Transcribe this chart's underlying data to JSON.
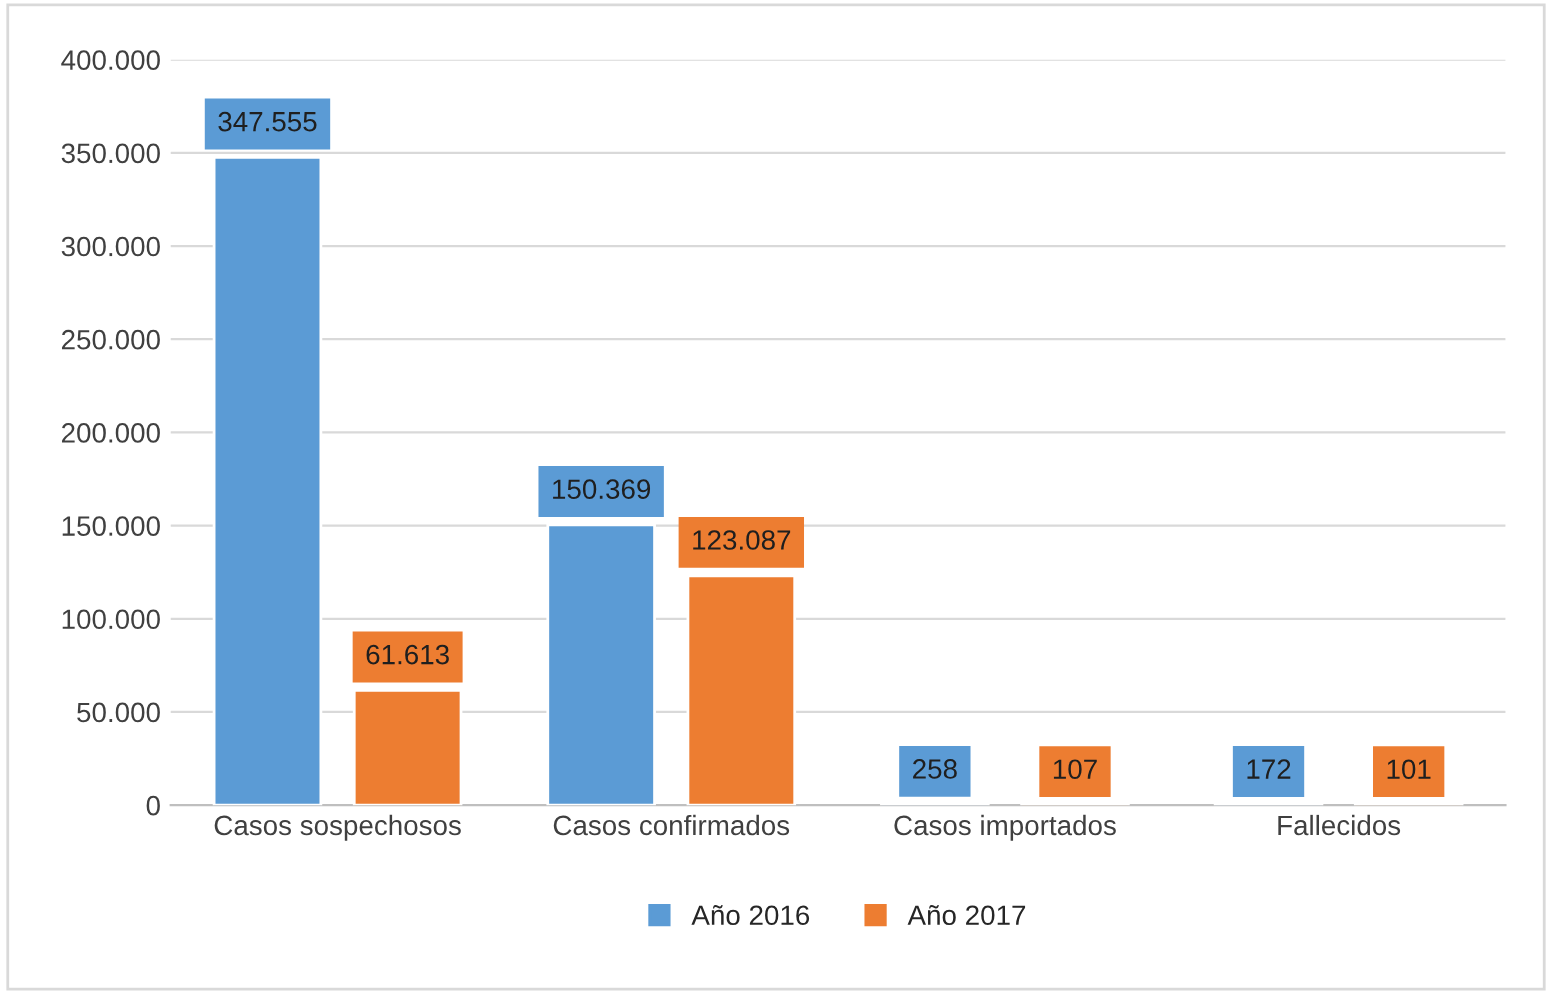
{
  "chart_data": {
    "type": "bar",
    "categories": [
      "Casos sospechosos",
      "Casos confirmados",
      "Casos importados",
      "Fallecidos"
    ],
    "series": [
      {
        "name": "Año 2016",
        "color": "#5b9bd5",
        "values": [
          347555,
          150369,
          258,
          172
        ],
        "value_labels": [
          "347.555",
          "150.369",
          "258",
          "172"
        ]
      },
      {
        "name": "Año 2017",
        "color": "#ed7d31",
        "values": [
          61613,
          123087,
          107,
          101
        ],
        "value_labels": [
          "61.613",
          "123.087",
          "107",
          "101"
        ]
      }
    ],
    "ylim": [
      0,
      400000
    ],
    "yticks": [
      {
        "value": 0,
        "label": "0"
      },
      {
        "value": 50000,
        "label": "50.000"
      },
      {
        "value": 100000,
        "label": "100.000"
      },
      {
        "value": 150000,
        "label": "150.000"
      },
      {
        "value": 200000,
        "label": "200.000"
      },
      {
        "value": 250000,
        "label": "250.000"
      },
      {
        "value": 300000,
        "label": "300.000"
      },
      {
        "value": 350000,
        "label": "350.000"
      },
      {
        "value": 400000,
        "label": "400.000"
      }
    ],
    "grid": "y",
    "legend": "bottom"
  }
}
